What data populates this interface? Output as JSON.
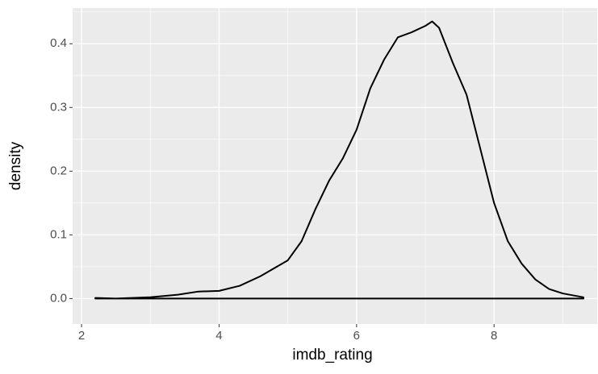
{
  "chart_data": {
    "type": "density",
    "x_label": "imdb_rating",
    "y_label": "density",
    "x": [
      2.2,
      2.5,
      3.0,
      3.4,
      3.7,
      4.0,
      4.3,
      4.6,
      5.0,
      5.2,
      5.4,
      5.6,
      5.8,
      6.0,
      6.2,
      6.4,
      6.6,
      6.8,
      7.0,
      7.1,
      7.2,
      7.4,
      7.6,
      7.8,
      8.0,
      8.2,
      8.4,
      8.6,
      8.8,
      9.0,
      9.3
    ],
    "values": [
      0.001,
      0.0,
      0.002,
      0.006,
      0.011,
      0.012,
      0.02,
      0.035,
      0.06,
      0.09,
      0.14,
      0.185,
      0.22,
      0.265,
      0.33,
      0.375,
      0.41,
      0.418,
      0.428,
      0.435,
      0.425,
      0.37,
      0.32,
      0.235,
      0.15,
      0.09,
      0.055,
      0.03,
      0.015,
      0.008,
      0.002
    ],
    "color": "#000000",
    "xlim": [
      1.87,
      9.5
    ],
    "xticks": [
      2,
      4,
      6,
      8
    ],
    "ylim": [
      -0.04,
      0.456
    ],
    "yticks": [
      {
        "value": 0,
        "label": "0.0"
      },
      0.1,
      0.2,
      0.3,
      0.4
    ],
    "grid": true
  }
}
